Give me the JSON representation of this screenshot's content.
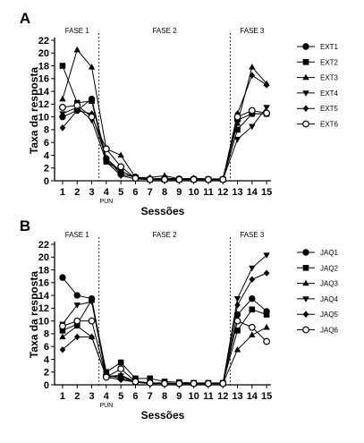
{
  "chart_data": [
    {
      "type": "line",
      "panel_label": "A",
      "ylabel": "Taxa da resposta",
      "xlabel": "Sessões",
      "ylim": [
        0,
        22
      ],
      "yticks": [
        0,
        2,
        4,
        6,
        8,
        10,
        12,
        14,
        16,
        18,
        20,
        22
      ],
      "x": [
        1,
        2,
        3,
        4,
        5,
        6,
        7,
        8,
        9,
        10,
        11,
        12,
        13,
        14,
        15
      ],
      "xtick_labels": [
        "1",
        "2",
        "3",
        "4",
        "5",
        "6",
        "7",
        "8",
        "9",
        "10",
        "11",
        "12",
        "13",
        "14",
        "15"
      ],
      "xtick_sublabel": {
        "at": 4,
        "text": "PUN"
      },
      "phase_boundaries": [
        3.5,
        12.5
      ],
      "phases": [
        {
          "label": "FASE 1",
          "center": 2
        },
        {
          "label": "FASE 2",
          "center": 8
        },
        {
          "label": "FASE 3",
          "center": 14
        }
      ],
      "legend_position": "right",
      "series": [
        {
          "name": "EXT1",
          "marker": "circle",
          "values": [
            10,
            11,
            12.8,
            3.5,
            1,
            0.6,
            0.3,
            0.4,
            0.3,
            0.3,
            0.2,
            0.2,
            9.5,
            10.5,
            10.5
          ]
        },
        {
          "name": "EXT2",
          "marker": "square",
          "values": [
            18,
            12.2,
            12.5,
            3,
            1.5,
            0.5,
            0.2,
            0.2,
            0.2,
            0.2,
            0.2,
            0.2,
            8,
            10.5,
            10.5
          ]
        },
        {
          "name": "EXT3",
          "marker": "triangle-up",
          "values": [
            12.8,
            20.5,
            17.8,
            5,
            4,
            0.5,
            0.5,
            0.8,
            0.3,
            0.4,
            0.3,
            0.3,
            9,
            17.8,
            15.2
          ]
        },
        {
          "name": "EXT4",
          "marker": "triangle-down",
          "values": [
            10.5,
            11.5,
            9.5,
            3,
            0.8,
            0.3,
            0.2,
            0.2,
            0.2,
            0.2,
            0.2,
            0.2,
            6.5,
            8.5,
            11.5
          ]
        },
        {
          "name": "EXT5",
          "marker": "diamond",
          "values": [
            8.3,
            11,
            10.5,
            3.5,
            1.5,
            0.5,
            0.2,
            0.2,
            0.2,
            0.2,
            0.2,
            0.2,
            10.5,
            16.5,
            15
          ]
        },
        {
          "name": "EXT6",
          "marker": "open-circle",
          "values": [
            11.5,
            11.8,
            10,
            5,
            2.2,
            0.4,
            0.2,
            0.2,
            0.2,
            0.2,
            0.2,
            0.2,
            10,
            11,
            10.6
          ]
        }
      ]
    },
    {
      "type": "line",
      "panel_label": "B",
      "ylabel": "Taxa da resposta",
      "xlabel": "Sessões",
      "ylim": [
        0,
        22
      ],
      "yticks": [
        0,
        2,
        4,
        6,
        8,
        10,
        12,
        14,
        16,
        18,
        20,
        22
      ],
      "x": [
        1,
        2,
        3,
        4,
        5,
        6,
        7,
        8,
        9,
        10,
        11,
        12,
        13,
        14,
        15
      ],
      "xtick_labels": [
        "1",
        "2",
        "3",
        "4",
        "5",
        "6",
        "7",
        "8",
        "9",
        "10",
        "11",
        "12",
        "13",
        "14",
        "15"
      ],
      "xtick_sublabel": {
        "at": 4,
        "text": "PUN"
      },
      "phase_boundaries": [
        3.5,
        12.5
      ],
      "phases": [
        {
          "label": "FASE 1",
          "center": 2
        },
        {
          "label": "FASE 2",
          "center": 8
        },
        {
          "label": "FASE 3",
          "center": 14
        }
      ],
      "legend_position": "right",
      "series": [
        {
          "name": "JAQ1",
          "marker": "circle",
          "values": [
            16.8,
            14,
            13.5,
            1.5,
            1,
            0.5,
            0.3,
            0.3,
            0.2,
            0.2,
            0.2,
            0.2,
            11,
            13.5,
            11.5
          ]
        },
        {
          "name": "JAQ2",
          "marker": "square",
          "values": [
            8.5,
            9.5,
            13.3,
            2,
            3.5,
            1,
            1,
            0.5,
            0.4,
            0.3,
            0.3,
            0.3,
            8.5,
            11.8,
            11
          ]
        },
        {
          "name": "JAQ3",
          "marker": "triangle-up",
          "values": [
            7.5,
            9.2,
            7.5,
            1.3,
            1.5,
            0.5,
            0.3,
            0.2,
            0.2,
            0.2,
            0.2,
            0.2,
            5.5,
            7.8,
            9
          ]
        },
        {
          "name": "JAQ4",
          "marker": "triangle-down",
          "values": [
            9.5,
            12.5,
            13,
            1.2,
            1.4,
            0.4,
            0.2,
            0.2,
            0.2,
            0.2,
            0.2,
            0.2,
            13.5,
            18.3,
            20.3
          ]
        },
        {
          "name": "JAQ5",
          "marker": "diamond",
          "values": [
            5.5,
            7.5,
            7.5,
            1.2,
            0.8,
            0.4,
            0.2,
            0.2,
            0.2,
            0.2,
            0.2,
            0.2,
            12.5,
            16.5,
            17.5
          ]
        },
        {
          "name": "JAQ6",
          "marker": "open-circle",
          "values": [
            9.2,
            10,
            10,
            1.2,
            2.5,
            0.5,
            0.3,
            0.2,
            0.2,
            0.2,
            0.2,
            0.2,
            10,
            9,
            6.8
          ]
        }
      ]
    }
  ]
}
